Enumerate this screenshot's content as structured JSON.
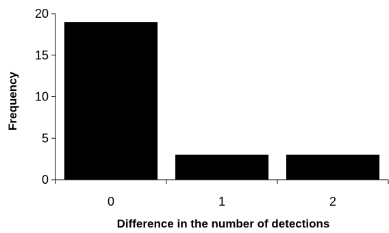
{
  "chart_data": {
    "type": "bar",
    "categories": [
      "0",
      "1",
      "2"
    ],
    "values": [
      19,
      3,
      3
    ],
    "xlabel": "Difference in the number of detections",
    "ylabel": "Frequency",
    "ylim": [
      0,
      20
    ],
    "yticks": [
      0,
      5,
      10,
      15,
      20
    ],
    "grid": false,
    "legend": "none",
    "bar_color": "#000000"
  }
}
